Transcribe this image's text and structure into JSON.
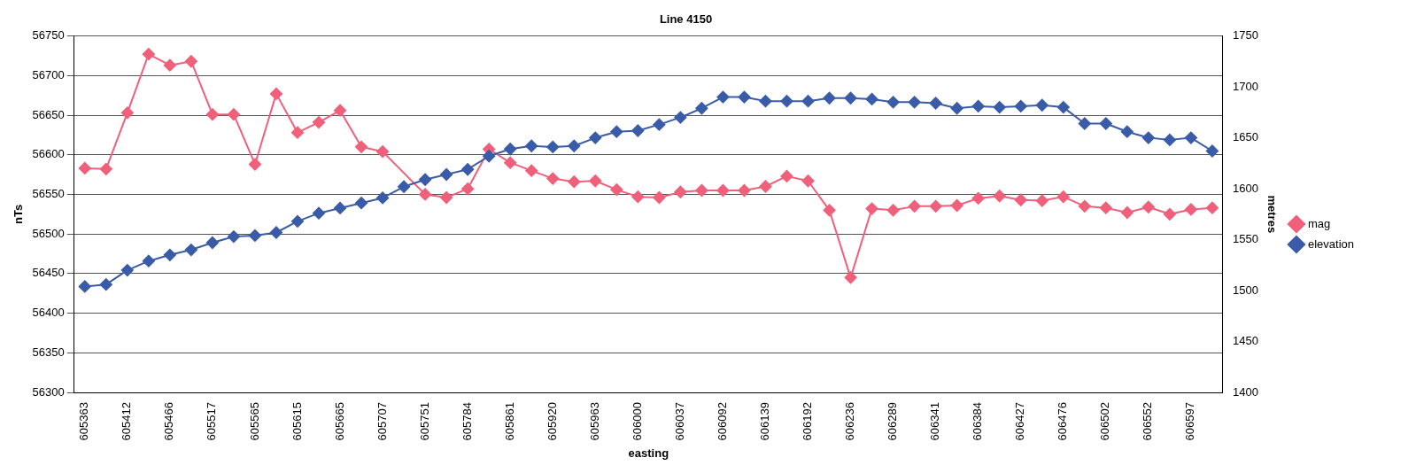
{
  "chart_data": {
    "type": "line",
    "title": "Line 4150",
    "xlabel": "easting",
    "ylabel": "nTs",
    "y2label": "metres",
    "categories": [
      "605363",
      null,
      "605412",
      null,
      "605466",
      null,
      "605517",
      null,
      "605565",
      null,
      "605615",
      null,
      "605665",
      null,
      "605707",
      null,
      "605751",
      null,
      "605784",
      null,
      "605861",
      null,
      "605920",
      null,
      "605963",
      null,
      "606000",
      null,
      "606037",
      null,
      "606092",
      null,
      "606139",
      null,
      "606192",
      null,
      "606236",
      null,
      "606289",
      null,
      "606341",
      null,
      "606384",
      null,
      "606427",
      null,
      "606476",
      null,
      "606502",
      null,
      "606552",
      null,
      "606597",
      null
    ],
    "series": [
      {
        "name": "mag",
        "color": "#f0607a",
        "values": [
          56583,
          56582,
          56653,
          56727,
          56713,
          56718,
          56651,
          56651,
          56588,
          56677,
          56628,
          56641,
          56656,
          56610,
          56604,
          null,
          56550,
          56546,
          56557,
          56607,
          56590,
          56580,
          56570,
          56566,
          56567,
          56556,
          56547,
          56546,
          56553,
          56555,
          56555,
          56555,
          56560,
          56573,
          56567,
          56530,
          56445,
          56532,
          56530,
          56535,
          56535,
          56536,
          56545,
          56548,
          56543,
          56542,
          56547,
          56535,
          56533,
          56527,
          56534,
          56525,
          56531,
          56533
        ]
      },
      {
        "name": "elevation",
        "color": "#3a5ca8",
        "axis": "y2",
        "values": [
          1504,
          1506,
          1520,
          1529,
          1535,
          1540,
          1547,
          1553,
          1554,
          1557,
          1568,
          1576,
          1581,
          1586,
          1591,
          1602,
          1609,
          1614,
          1619,
          1632,
          1639,
          1642,
          1641,
          1642,
          1650,
          1656,
          1657,
          1663,
          1670,
          1679,
          1690,
          1690,
          1686,
          1686,
          1686,
          1689,
          1689,
          1688,
          1685,
          1685,
          1684,
          1679,
          1681,
          1680,
          1681,
          1682,
          1680,
          1664,
          1664,
          1656,
          1650,
          1648,
          1650,
          1637
        ]
      }
    ],
    "ylim": [
      56300,
      56750
    ],
    "yticks": [
      56300,
      56350,
      56400,
      56450,
      56500,
      56550,
      56600,
      56650,
      56700,
      56750
    ],
    "y2lim": [
      1400,
      1750
    ],
    "y2ticks": [
      1400,
      1450,
      1500,
      1550,
      1600,
      1650,
      1700,
      1750
    ],
    "grid": "y",
    "legend": "right",
    "marker": "diamond",
    "line_style": "solid"
  }
}
